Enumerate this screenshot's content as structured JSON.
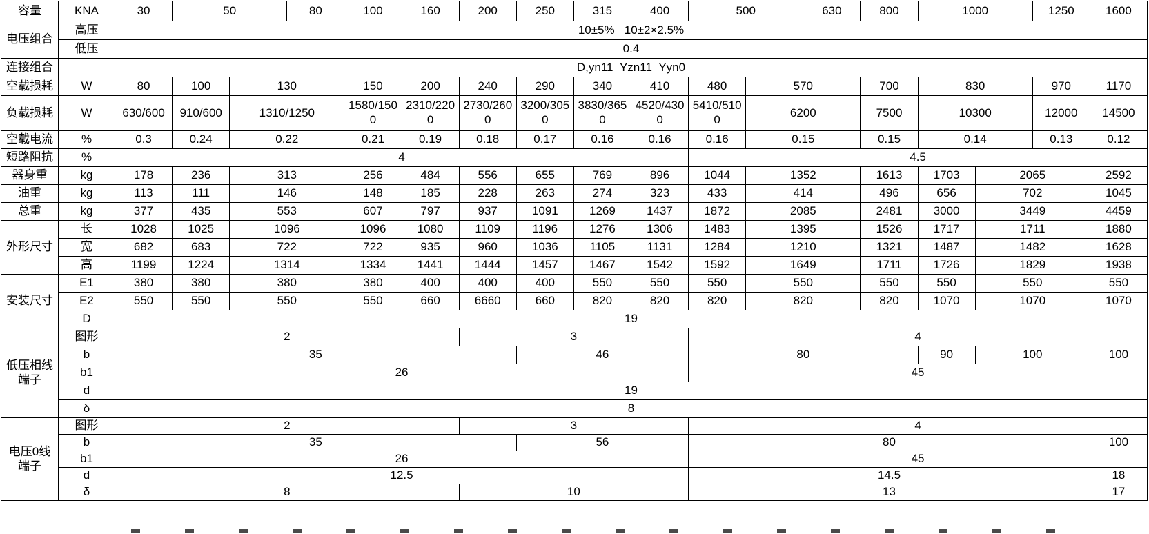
{
  "table": {
    "rows": [
      {
        "label": "容量",
        "rowspan": 1,
        "unit": "KNA",
        "cells": [
          [
            "30",
            1
          ],
          [
            "50",
            2
          ],
          [
            "80",
            1
          ],
          [
            "100",
            1
          ],
          [
            "160",
            1
          ],
          [
            "200",
            1
          ],
          [
            "250",
            1
          ],
          [
            "315",
            1
          ],
          [
            "400",
            1
          ],
          [
            "500",
            2
          ],
          [
            "630",
            1
          ],
          [
            "800",
            1
          ],
          [
            "1000",
            2
          ],
          [
            "1250",
            1
          ],
          [
            "1600",
            1
          ]
        ]
      },
      {
        "label": "电压组合",
        "rowspan": 2,
        "unit": "高压",
        "cells": [
          [
            "10±5%   10±2×2.5%",
            18
          ]
        ]
      },
      {
        "label": null,
        "rowspan": 1,
        "unit": "低压",
        "cells": [
          [
            "0.4",
            18
          ]
        ]
      },
      {
        "label": "连接组合",
        "rowspan": 1,
        "unit": "",
        "cells": [
          [
            "D,yn11  Yzn11  Yyn0",
            18
          ]
        ]
      },
      {
        "label": "空载损耗",
        "rowspan": 1,
        "unit": "W",
        "cells": [
          [
            "80",
            1
          ],
          [
            "100",
            1
          ],
          [
            "130",
            2
          ],
          [
            "150",
            1
          ],
          [
            "200",
            1
          ],
          [
            "240",
            1
          ],
          [
            "290",
            1
          ],
          [
            "340",
            1
          ],
          [
            "410",
            1
          ],
          [
            "480",
            1
          ],
          [
            "570",
            2
          ],
          [
            "700",
            1
          ],
          [
            "830",
            2
          ],
          [
            "970",
            1
          ],
          [
            "1170",
            1
          ]
        ]
      },
      {
        "label": "负载损耗",
        "rowspan": 1,
        "unit": "W",
        "cells": [
          [
            "630/600",
            1
          ],
          [
            "910/600",
            1
          ],
          [
            "1310/1250",
            2
          ],
          [
            "1580/1500",
            1
          ],
          [
            "2310/2200",
            1
          ],
          [
            "2730/2600",
            1
          ],
          [
            "3200/3050",
            1
          ],
          [
            "3830/3650",
            1
          ],
          [
            "4520/4300",
            1
          ],
          [
            "5410/5100",
            1
          ],
          [
            "6200",
            2
          ],
          [
            "7500",
            1
          ],
          [
            "10300",
            2
          ],
          [
            "12000",
            1
          ],
          [
            "14500",
            1
          ]
        ]
      },
      {
        "label": "空载电流",
        "rowspan": 1,
        "unit": "%",
        "cells": [
          [
            "0.3",
            1
          ],
          [
            "0.24",
            1
          ],
          [
            "0.22",
            2
          ],
          [
            "0.21",
            1
          ],
          [
            "0.19",
            1
          ],
          [
            "0.18",
            1
          ],
          [
            "0.17",
            1
          ],
          [
            "0.16",
            1
          ],
          [
            "0.16",
            1
          ],
          [
            "0.16",
            1
          ],
          [
            "0.15",
            2
          ],
          [
            "0.15",
            1
          ],
          [
            "0.14",
            2
          ],
          [
            "0.13",
            1
          ],
          [
            "0.12",
            1
          ]
        ]
      },
      {
        "label": "短路阻抗",
        "rowspan": 1,
        "unit": "%",
        "cells": [
          [
            "4",
            10
          ],
          [
            "4.5",
            8
          ]
        ]
      },
      {
        "label": "器身重",
        "rowspan": 1,
        "unit": "kg",
        "cells": [
          [
            "178",
            1
          ],
          [
            "236",
            1
          ],
          [
            "313",
            2
          ],
          [
            "256",
            1
          ],
          [
            "484",
            1
          ],
          [
            "556",
            1
          ],
          [
            "655",
            1
          ],
          [
            "769",
            1
          ],
          [
            "896",
            1
          ],
          [
            "1044",
            1
          ],
          [
            "1352",
            2
          ],
          [
            "1613",
            1
          ],
          [
            "1703",
            1
          ],
          [
            "2065",
            2
          ],
          [
            "2592",
            1
          ]
        ]
      },
      {
        "label": "油重",
        "rowspan": 1,
        "unit": "kg",
        "cells": [
          [
            "113",
            1
          ],
          [
            "111",
            1
          ],
          [
            "146",
            2
          ],
          [
            "148",
            1
          ],
          [
            "185",
            1
          ],
          [
            "228",
            1
          ],
          [
            "263",
            1
          ],
          [
            "274",
            1
          ],
          [
            "323",
            1
          ],
          [
            "433",
            1
          ],
          [
            "414",
            2
          ],
          [
            "496",
            1
          ],
          [
            "656",
            1
          ],
          [
            "702",
            2
          ],
          [
            "1045",
            1
          ]
        ]
      },
      {
        "label": "总重",
        "rowspan": 1,
        "unit": "kg",
        "cells": [
          [
            "377",
            1
          ],
          [
            "435",
            1
          ],
          [
            "553",
            2
          ],
          [
            "607",
            1
          ],
          [
            "797",
            1
          ],
          [
            "937",
            1
          ],
          [
            "1091",
            1
          ],
          [
            "1269",
            1
          ],
          [
            "1437",
            1
          ],
          [
            "1872",
            1
          ],
          [
            "2085",
            2
          ],
          [
            "2481",
            1
          ],
          [
            "3000",
            1
          ],
          [
            "3449",
            2
          ],
          [
            "4459",
            1
          ]
        ]
      },
      {
        "label": "外形尺寸",
        "rowspan": 3,
        "unit": "长",
        "cells": [
          [
            "1028",
            1
          ],
          [
            "1025",
            1
          ],
          [
            "1096",
            2
          ],
          [
            "1096",
            1
          ],
          [
            "1080",
            1
          ],
          [
            "1109",
            1
          ],
          [
            "1196",
            1
          ],
          [
            "1276",
            1
          ],
          [
            "1306",
            1
          ],
          [
            "1483",
            1
          ],
          [
            "1395",
            2
          ],
          [
            "1526",
            1
          ],
          [
            "1717",
            1
          ],
          [
            "1711",
            2
          ],
          [
            "1880",
            1
          ]
        ]
      },
      {
        "label": null,
        "rowspan": 1,
        "unit": "宽",
        "cells": [
          [
            "682",
            1
          ],
          [
            "683",
            1
          ],
          [
            "722",
            2
          ],
          [
            "722",
            1
          ],
          [
            "935",
            1
          ],
          [
            "960",
            1
          ],
          [
            "1036",
            1
          ],
          [
            "1105",
            1
          ],
          [
            "1131",
            1
          ],
          [
            "1284",
            1
          ],
          [
            "1210",
            2
          ],
          [
            "1321",
            1
          ],
          [
            "1487",
            1
          ],
          [
            "1482",
            2
          ],
          [
            "1628",
            1
          ]
        ]
      },
      {
        "label": null,
        "rowspan": 1,
        "unit": "高",
        "cells": [
          [
            "1199",
            1
          ],
          [
            "1224",
            1
          ],
          [
            "1314",
            2
          ],
          [
            "1334",
            1
          ],
          [
            "1441",
            1
          ],
          [
            "1444",
            1
          ],
          [
            "1457",
            1
          ],
          [
            "1467",
            1
          ],
          [
            "1542",
            1
          ],
          [
            "1592",
            1
          ],
          [
            "1649",
            2
          ],
          [
            "1711",
            1
          ],
          [
            "1726",
            1
          ],
          [
            "1829",
            2
          ],
          [
            "1938",
            1
          ]
        ]
      },
      {
        "label": "安装尺寸",
        "rowspan": 3,
        "unit": "E1",
        "cells": [
          [
            "380",
            1
          ],
          [
            "380",
            1
          ],
          [
            "380",
            2
          ],
          [
            "380",
            1
          ],
          [
            "400",
            1
          ],
          [
            "400",
            1
          ],
          [
            "400",
            1
          ],
          [
            "550",
            1
          ],
          [
            "550",
            1
          ],
          [
            "550",
            1
          ],
          [
            "550",
            2
          ],
          [
            "550",
            1
          ],
          [
            "550",
            1
          ],
          [
            "550",
            2
          ],
          [
            "550",
            1
          ]
        ]
      },
      {
        "label": null,
        "rowspan": 1,
        "unit": "E2",
        "cells": [
          [
            "550",
            1
          ],
          [
            "550",
            1
          ],
          [
            "550",
            2
          ],
          [
            "550",
            1
          ],
          [
            "660",
            1
          ],
          [
            "6660",
            1
          ],
          [
            "660",
            1
          ],
          [
            "820",
            1
          ],
          [
            "820",
            1
          ],
          [
            "820",
            1
          ],
          [
            "820",
            2
          ],
          [
            "820",
            1
          ],
          [
            "1070",
            1
          ],
          [
            "1070",
            2
          ],
          [
            "1070",
            1
          ]
        ]
      },
      {
        "label": null,
        "rowspan": 1,
        "unit": "D",
        "cells": [
          [
            "19",
            18
          ]
        ]
      },
      {
        "label": "低压相线\n端子",
        "rowspan": 5,
        "unit": "图形",
        "cells": [
          [
            "2",
            6
          ],
          [
            "3",
            4
          ],
          [
            "4",
            8
          ]
        ]
      },
      {
        "label": null,
        "rowspan": 1,
        "unit": "b",
        "cells": [
          [
            "35",
            7
          ],
          [
            "46",
            3
          ],
          [
            "80",
            4
          ],
          [
            "90",
            1
          ],
          [
            "100",
            2
          ],
          [
            "100",
            1
          ]
        ]
      },
      {
        "label": null,
        "rowspan": 1,
        "unit": "b1",
        "cells": [
          [
            "26",
            10
          ],
          [
            "45",
            8
          ]
        ]
      },
      {
        "label": null,
        "rowspan": 1,
        "unit": "d",
        "cells": [
          [
            "19",
            18
          ]
        ]
      },
      {
        "label": null,
        "rowspan": 1,
        "unit": "δ",
        "cells": [
          [
            "8",
            18
          ]
        ]
      },
      {
        "label": "电压0线\n端子",
        "rowspan": 5,
        "unit": "图形",
        "cells": [
          [
            "2",
            6
          ],
          [
            "3",
            4
          ],
          [
            "4",
            8
          ]
        ]
      },
      {
        "label": null,
        "rowspan": 1,
        "unit": "b",
        "cells": [
          [
            "35",
            7
          ],
          [
            "56",
            3
          ],
          [
            "80",
            7
          ],
          [
            "100",
            1
          ]
        ]
      },
      {
        "label": null,
        "rowspan": 1,
        "unit": "b1",
        "cells": [
          [
            "26",
            10
          ],
          [
            "45",
            8
          ]
        ]
      },
      {
        "label": null,
        "rowspan": 1,
        "unit": "d",
        "cells": [
          [
            "12.5",
            10
          ],
          [
            "14.5",
            7
          ],
          [
            "18",
            1
          ]
        ]
      },
      {
        "label": null,
        "rowspan": 1,
        "unit": "δ",
        "cells": [
          [
            "8",
            6
          ],
          [
            "10",
            4
          ],
          [
            "13",
            7
          ],
          [
            "17",
            1
          ]
        ]
      }
    ]
  },
  "colors": {
    "grid_line": "#000000",
    "text": "#000000",
    "background": "#ffffff"
  }
}
